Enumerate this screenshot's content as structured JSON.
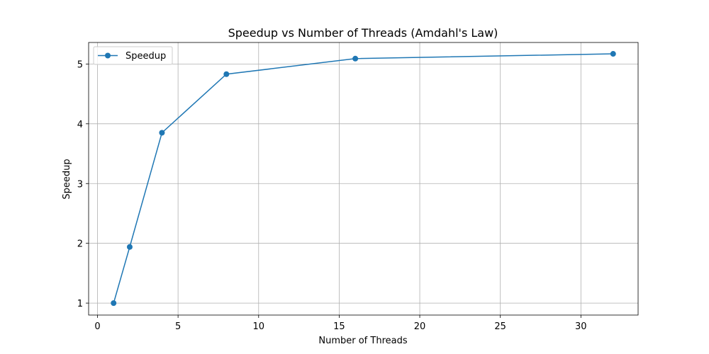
{
  "chart_data": {
    "type": "line",
    "title": "Speedup vs Number of Threads (Amdahl's Law)",
    "xlabel": "Number of Threads",
    "ylabel": "Speedup",
    "xlim": [
      -0.55,
      33.55
    ],
    "ylim": [
      0.8,
      5.36
    ],
    "xticks": [
      0,
      5,
      10,
      15,
      20,
      25,
      30
    ],
    "yticks": [
      1,
      2,
      3,
      4,
      5
    ],
    "grid": true,
    "legend_position": "top-left",
    "series": [
      {
        "name": "Speedup",
        "color": "#1f77b4",
        "marker": "circle",
        "x": [
          1,
          2,
          4,
          8,
          16,
          32
        ],
        "y": [
          1.0,
          1.94,
          3.85,
          4.83,
          5.09,
          5.17
        ]
      }
    ]
  }
}
